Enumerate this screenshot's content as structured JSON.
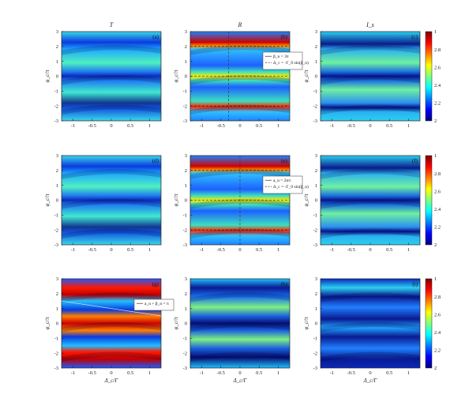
{
  "chart_data": {
    "type": "heatmap",
    "column_titles": [
      "T",
      "R",
      "I_s"
    ],
    "colorbar_ticks": [
      "1",
      "2.8",
      "2.6",
      "2.4",
      "2.2",
      "2"
    ],
    "xticks": [
      "-1",
      "-0.5",
      "0",
      "0.5",
      "1"
    ],
    "yticks": [
      "3",
      "2",
      "1",
      "0",
      "-1",
      "-2",
      "-3"
    ],
    "xlabel": "Δ_c/Γ",
    "ylabel": "φ_c/π",
    "xlim": [
      -1.3,
      1.3
    ],
    "ylim": [
      -3,
      3
    ],
    "panels": [
      {
        "label": "(a)",
        "quantity": "T",
        "row": 0,
        "col": 0
      },
      {
        "label": "(b)",
        "quantity": "R",
        "row": 0,
        "col": 1,
        "legend": [
          "β_n = 3π",
          "Δ_c = -Γ_0 sin(β_n)"
        ]
      },
      {
        "label": "(c)",
        "quantity": "I_s",
        "row": 0,
        "col": 2
      },
      {
        "label": "(d)",
        "quantity": "T",
        "row": 1,
        "col": 0
      },
      {
        "label": "(e)",
        "quantity": "R",
        "row": 1,
        "col": 1,
        "legend": [
          "a_n = 2nπ",
          "Δ_c = -Γ_0 sin(β_n)"
        ]
      },
      {
        "label": "(f)",
        "quantity": "I_s",
        "row": 1,
        "col": 2
      },
      {
        "label": "(g)",
        "quantity": "T",
        "row": 2,
        "col": 0,
        "legend": [
          "a_n + β_n = π"
        ]
      },
      {
        "label": "(h)",
        "quantity": "R",
        "row": 2,
        "col": 1
      },
      {
        "label": "(i)",
        "quantity": "I_s",
        "row": 2,
        "col": 2
      }
    ]
  }
}
